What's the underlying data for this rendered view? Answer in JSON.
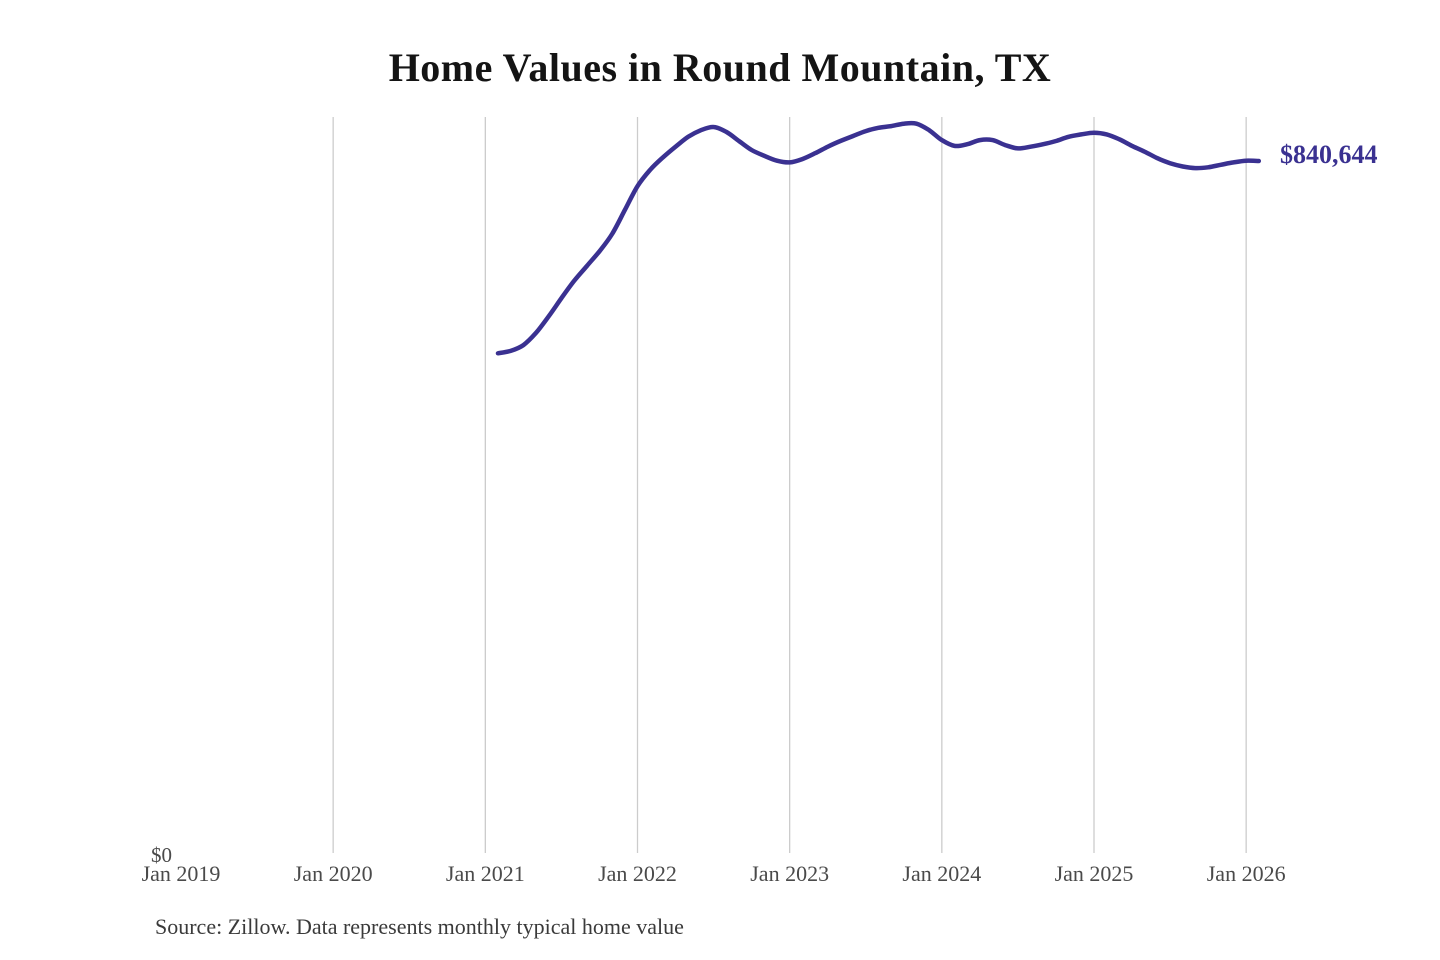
{
  "chart_data": {
    "type": "line",
    "title": "Home Values in Round Mountain, TX",
    "xlabel": "",
    "ylabel": "",
    "x_tick_labels": [
      "Jan 2019",
      "Jan 2020",
      "Jan 2021",
      "Jan 2022",
      "Jan 2023",
      "Jan 2024",
      "Jan 2025",
      "Jan 2026"
    ],
    "x_tick_years": [
      2019,
      2020,
      2021,
      2022,
      2023,
      2024,
      2025,
      2026
    ],
    "gridline_years": [
      2020,
      2021,
      2022,
      2023,
      2024,
      2025,
      2026
    ],
    "y_axis": {
      "min": 0,
      "min_label": "$0",
      "max_implied": 1033000,
      "grid": "vertical-only"
    },
    "legend": "none",
    "end_label": "$840,644",
    "end_value": 840644,
    "line_color": "#3a3191",
    "gridline_color": "#cccccc",
    "tick_label_color": "#4a4a4a",
    "series": [
      {
        "name": "Monthly typical home value",
        "points": [
          {
            "date": "2021-02",
            "value": 607000
          },
          {
            "date": "2021-03",
            "value": 610000
          },
          {
            "date": "2021-04",
            "value": 617000
          },
          {
            "date": "2021-05",
            "value": 632000
          },
          {
            "date": "2021-06",
            "value": 652000
          },
          {
            "date": "2021-07",
            "value": 674000
          },
          {
            "date": "2021-08",
            "value": 695000
          },
          {
            "date": "2021-09",
            "value": 713000
          },
          {
            "date": "2021-10",
            "value": 731000
          },
          {
            "date": "2021-11",
            "value": 752000
          },
          {
            "date": "2021-12",
            "value": 781000
          },
          {
            "date": "2022-01",
            "value": 810000
          },
          {
            "date": "2022-02",
            "value": 830000
          },
          {
            "date": "2022-03",
            "value": 845000
          },
          {
            "date": "2022-04",
            "value": 858000
          },
          {
            "date": "2022-05",
            "value": 870000
          },
          {
            "date": "2022-06",
            "value": 878000
          },
          {
            "date": "2022-07",
            "value": 882000
          },
          {
            "date": "2022-08",
            "value": 876000
          },
          {
            "date": "2022-09",
            "value": 865000
          },
          {
            "date": "2022-10",
            "value": 854000
          },
          {
            "date": "2022-11",
            "value": 847000
          },
          {
            "date": "2022-12",
            "value": 841000
          },
          {
            "date": "2023-01",
            "value": 839000
          },
          {
            "date": "2023-02",
            "value": 843000
          },
          {
            "date": "2023-03",
            "value": 850000
          },
          {
            "date": "2023-04",
            "value": 858000
          },
          {
            "date": "2023-05",
            "value": 865000
          },
          {
            "date": "2023-06",
            "value": 871000
          },
          {
            "date": "2023-07",
            "value": 877000
          },
          {
            "date": "2023-08",
            "value": 881000
          },
          {
            "date": "2023-09",
            "value": 883000
          },
          {
            "date": "2023-10",
            "value": 886000
          },
          {
            "date": "2023-11",
            "value": 886000
          },
          {
            "date": "2023-12",
            "value": 878000
          },
          {
            "date": "2024-01",
            "value": 866000
          },
          {
            "date": "2024-02",
            "value": 859000
          },
          {
            "date": "2024-03",
            "value": 861000
          },
          {
            "date": "2024-04",
            "value": 866000
          },
          {
            "date": "2024-05",
            "value": 866000
          },
          {
            "date": "2024-06",
            "value": 860000
          },
          {
            "date": "2024-07",
            "value": 856000
          },
          {
            "date": "2024-08",
            "value": 858000
          },
          {
            "date": "2024-09",
            "value": 861000
          },
          {
            "date": "2024-10",
            "value": 865000
          },
          {
            "date": "2024-11",
            "value": 870000
          },
          {
            "date": "2024-12",
            "value": 873000
          },
          {
            "date": "2025-01",
            "value": 875000
          },
          {
            "date": "2025-02",
            "value": 873000
          },
          {
            "date": "2025-03",
            "value": 867000
          },
          {
            "date": "2025-04",
            "value": 859000
          },
          {
            "date": "2025-05",
            "value": 852000
          },
          {
            "date": "2025-06",
            "value": 844000
          },
          {
            "date": "2025-07",
            "value": 838000
          },
          {
            "date": "2025-08",
            "value": 834000
          },
          {
            "date": "2025-09",
            "value": 832000
          },
          {
            "date": "2025-10",
            "value": 833000
          },
          {
            "date": "2025-11",
            "value": 836000
          },
          {
            "date": "2025-12",
            "value": 839000
          },
          {
            "date": "2026-01",
            "value": 841000
          },
          {
            "date": "2026-02",
            "value": 840644
          }
        ]
      }
    ],
    "source_note": "Source: Zillow. Data represents monthly typical home value"
  }
}
